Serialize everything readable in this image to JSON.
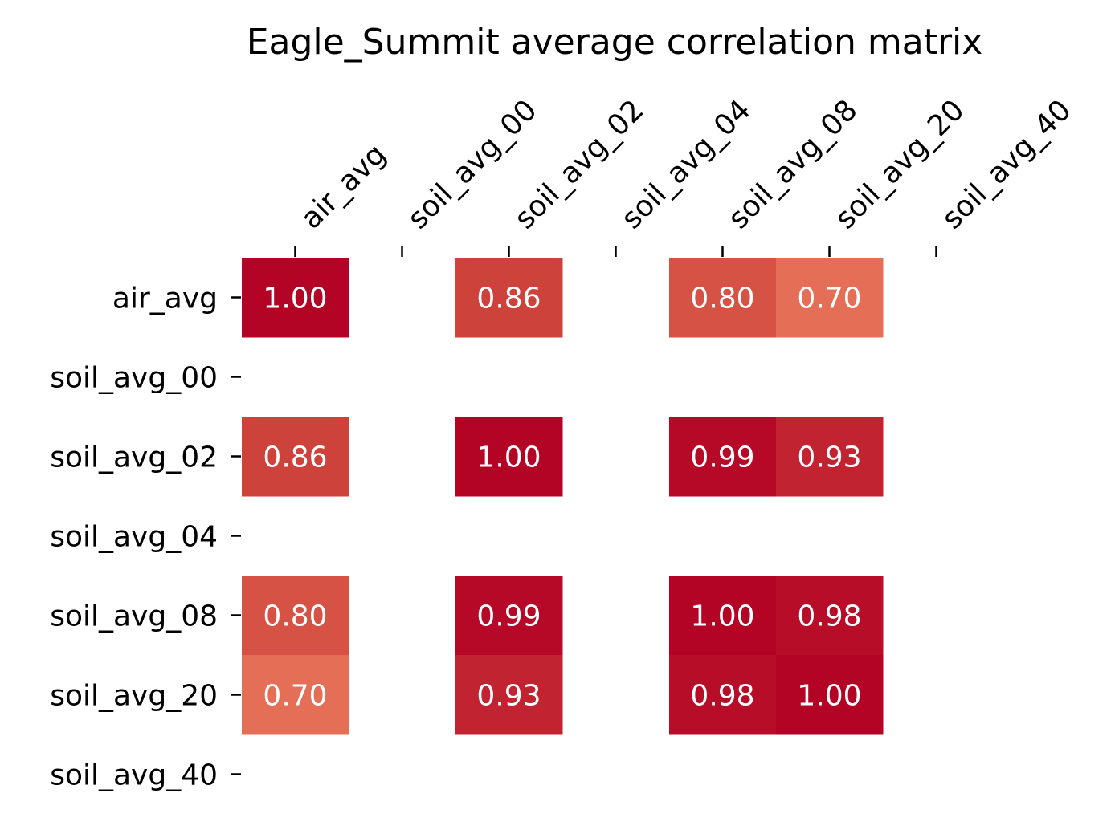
{
  "chart_data": {
    "type": "heatmap",
    "title": "Eagle_Summit average correlation matrix",
    "x_labels": [
      "air_avg",
      "soil_avg_00",
      "soil_avg_02",
      "soil_avg_04",
      "soil_avg_08",
      "soil_avg_20",
      "soil_avg_40"
    ],
    "y_labels": [
      "air_avg",
      "soil_avg_00",
      "soil_avg_02",
      "soil_avg_04",
      "soil_avg_08",
      "soil_avg_20",
      "soil_avg_40"
    ],
    "values": [
      [
        1.0,
        null,
        0.86,
        null,
        0.8,
        0.7,
        null
      ],
      [
        null,
        null,
        null,
        null,
        null,
        null,
        null
      ],
      [
        0.86,
        null,
        1.0,
        null,
        0.99,
        0.93,
        null
      ],
      [
        null,
        null,
        null,
        null,
        null,
        null,
        null
      ],
      [
        0.8,
        null,
        0.99,
        null,
        1.0,
        0.98,
        null
      ],
      [
        0.7,
        null,
        0.93,
        null,
        0.98,
        1.0,
        null
      ],
      [
        null,
        null,
        null,
        null,
        null,
        null,
        null
      ]
    ],
    "value_labels": [
      [
        "1.00",
        null,
        "0.86",
        null,
        "0.80",
        "0.70",
        null
      ],
      [
        null,
        null,
        null,
        null,
        null,
        null,
        null
      ],
      [
        "0.86",
        null,
        "1.00",
        null,
        "0.99",
        "0.93",
        null
      ],
      [
        null,
        null,
        null,
        null,
        null,
        null,
        null
      ],
      [
        "0.80",
        null,
        "0.99",
        null,
        "1.00",
        "0.98",
        null
      ],
      [
        "0.70",
        null,
        "0.93",
        null,
        "0.98",
        "1.00",
        null
      ],
      [
        null,
        null,
        null,
        null,
        null,
        null,
        null
      ]
    ],
    "x_axis_position": "top",
    "colormap": "coolwarm (red end)",
    "missing_cells": "blank",
    "grid": false,
    "legend": "none"
  }
}
